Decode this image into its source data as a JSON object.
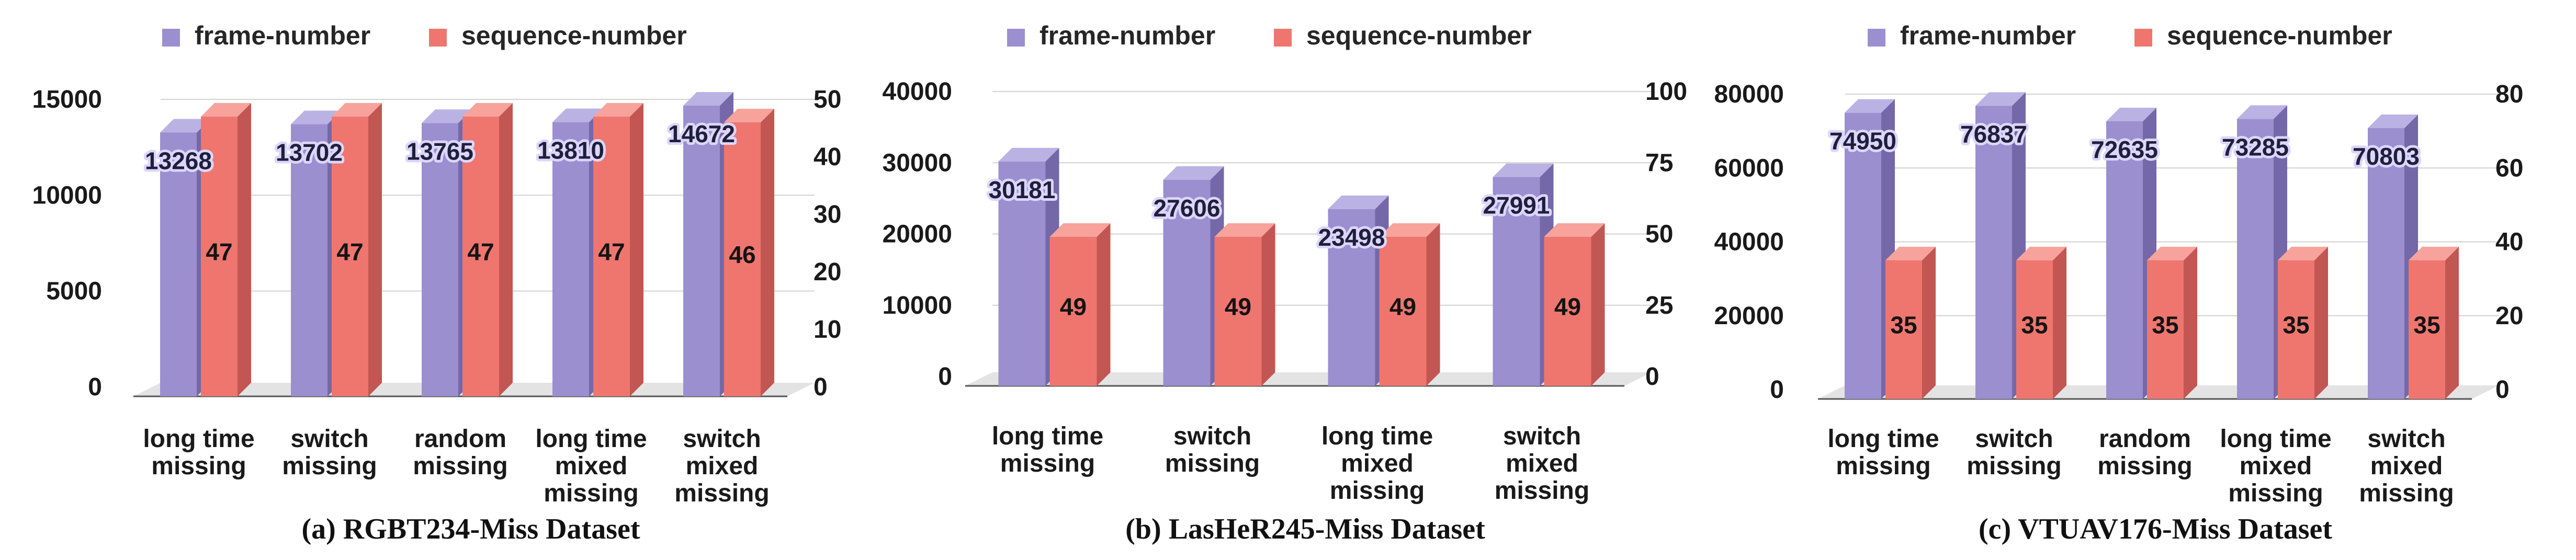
{
  "colors": {
    "frame_front": "#9b8fd0",
    "frame_side": "#7468a8",
    "frame_top": "#bbb2e4",
    "seq_front": "#ee766f",
    "seq_side": "#c25652",
    "seq_top": "#f7a39c",
    "floor": "#e3e3e3",
    "grid": "#d2d2d2"
  },
  "chart_data": [
    {
      "type": "bar",
      "caption": "(a) RGBT234-Miss Dataset",
      "categories": [
        [
          "long time",
          "missing"
        ],
        [
          "switch",
          "missing"
        ],
        [
          "random",
          "missing"
        ],
        [
          "long time",
          "mixed",
          "missing"
        ],
        [
          "switch",
          "mixed",
          "missing"
        ]
      ],
      "series": [
        {
          "name": "frame-number",
          "axis": "left",
          "values": [
            13268,
            13702,
            13765,
            13810,
            14672
          ]
        },
        {
          "name": "sequence-number",
          "axis": "right",
          "values": [
            47,
            47,
            47,
            47,
            46
          ]
        }
      ],
      "y_left": {
        "range": [
          0,
          15000
        ],
        "ticks": [
          "0",
          "5000",
          "10000",
          "15000"
        ]
      },
      "y_right": {
        "range": [
          0,
          50
        ],
        "ticks": [
          "0",
          "10",
          "20",
          "30",
          "40",
          "50"
        ]
      },
      "legend": "top"
    },
    {
      "type": "bar",
      "caption": "(b) LasHeR245-Miss Dataset",
      "categories": [
        [
          "long time",
          "missing"
        ],
        [
          "switch",
          "missing"
        ],
        [
          "long time",
          "mixed",
          "missing"
        ],
        [
          "switch",
          "mixed",
          "missing"
        ]
      ],
      "series": [
        {
          "name": "frame-number",
          "axis": "left",
          "values": [
            30181,
            27606,
            23498,
            27991
          ]
        },
        {
          "name": "sequence-number",
          "axis": "right",
          "values": [
            49,
            49,
            49,
            49
          ]
        }
      ],
      "y_left": {
        "range": [
          0,
          40000
        ],
        "ticks": [
          "0",
          "10000",
          "20000",
          "30000",
          "40000"
        ]
      },
      "y_right": {
        "range": [
          0,
          100
        ],
        "ticks": [
          "0",
          "25",
          "50",
          "75",
          "100"
        ]
      },
      "legend": "top"
    },
    {
      "type": "bar",
      "caption": "(c) VTUAV176-Miss Dataset",
      "categories": [
        [
          "long time",
          "missing"
        ],
        [
          "switch",
          "missing"
        ],
        [
          "random",
          "missing"
        ],
        [
          "long time",
          "mixed",
          "missing"
        ],
        [
          "switch",
          "mixed",
          "missing"
        ]
      ],
      "series": [
        {
          "name": "frame-number",
          "axis": "left",
          "values": [
            74950,
            76837,
            72635,
            73285,
            70803
          ]
        },
        {
          "name": "sequence-number",
          "axis": "right",
          "values": [
            35,
            35,
            35,
            35,
            35
          ]
        }
      ],
      "y_left": {
        "range": [
          0,
          80000
        ],
        "ticks": [
          "0",
          "20000",
          "40000",
          "60000",
          "80000"
        ]
      },
      "y_right": {
        "range": [
          0,
          80
        ],
        "ticks": [
          "0",
          "20",
          "40",
          "60",
          "80"
        ]
      },
      "legend": "top"
    }
  ]
}
